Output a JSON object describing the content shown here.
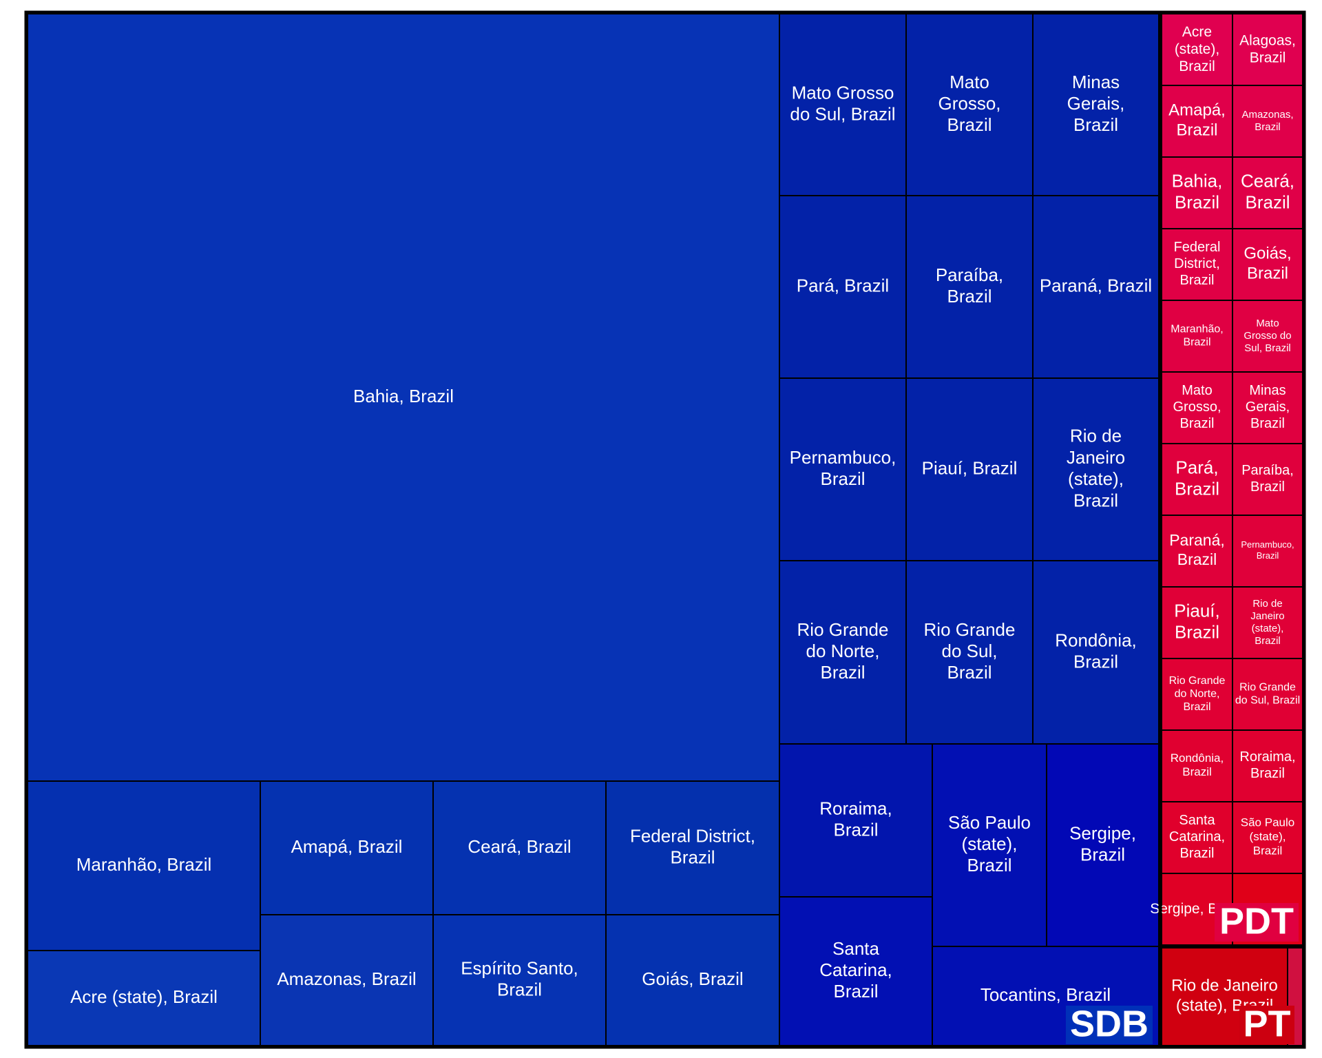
{
  "chart_data": {
    "type": "treemap",
    "groups": [
      {
        "name": "SDB",
        "color": "#0030b8",
        "tiles": [
          {
            "label": "Bahia, Brazil",
            "color": "#0733b5"
          },
          {
            "label": "Maranhão, Brazil",
            "color": "#0530b0"
          },
          {
            "label": "Acre (state), Brazil",
            "color": "#0a38b5"
          },
          {
            "label": "Amapá, Brazil",
            "color": "#0532b0"
          },
          {
            "label": "Ceará, Brazil",
            "color": "#0532b0"
          },
          {
            "label": "Federal District, Brazil",
            "color": "#0430ad"
          },
          {
            "label": "Amazonas, Brazil",
            "color": "#0a35b3"
          },
          {
            "label": "Espírito Santo, Brazil",
            "color": "#0633b3"
          },
          {
            "label": "Goiás, Brazil",
            "color": "#0532b0"
          },
          {
            "label": "Mato Grosso do Sul, Brazil",
            "color": "#0322a8"
          },
          {
            "label": "Mato Grosso, Brazil",
            "color": "#0322a8"
          },
          {
            "label": "Minas Gerais, Brazil",
            "color": "#0322a8"
          },
          {
            "label": "Pará, Brazil",
            "color": "#0322a8"
          },
          {
            "label": "Paraíba, Brazil",
            "color": "#0322a8"
          },
          {
            "label": "Paraná, Brazil",
            "color": "#0322a8"
          },
          {
            "label": "Pernambuco, Brazil",
            "color": "#0322a8"
          },
          {
            "label": "Piauí, Brazil",
            "color": "#0322a8"
          },
          {
            "label": "Rio de Janeiro (state), Brazil",
            "color": "#0322a8"
          },
          {
            "label": "Rio Grande do Norte, Brazil",
            "color": "#0322a8"
          },
          {
            "label": "Rio Grande do Sul, Brazil",
            "color": "#0322a8"
          },
          {
            "label": "Rondônia, Brazil",
            "color": "#0322a8"
          },
          {
            "label": "Roraima, Brazil",
            "color": "#0215ad"
          },
          {
            "label": "São Paulo (state), Brazil",
            "color": "#0210b3"
          },
          {
            "label": "Sergipe, Brazil",
            "color": "#0208b5"
          },
          {
            "label": "Santa Catarina, Brazil",
            "color": "#0210b3"
          },
          {
            "label": "Tocantins, Brazil",
            "color": "#0210b3"
          }
        ]
      },
      {
        "name": "PDT",
        "color": "#e00040",
        "tiles": [
          {
            "label": "Acre (state), Brazil",
            "color": "#e00050"
          },
          {
            "label": "Alagoas, Brazil",
            "color": "#e00050"
          },
          {
            "label": "Amapá, Brazil",
            "color": "#e0004a"
          },
          {
            "label": "Amazonas, Brazil",
            "color": "#e0004a"
          },
          {
            "label": "Bahia, Brazil",
            "color": "#e00048"
          },
          {
            "label": "Ceará, Brazil",
            "color": "#e00048"
          },
          {
            "label": "Federal District, Brazil",
            "color": "#e00045"
          },
          {
            "label": "Goiás, Brazil",
            "color": "#e00045"
          },
          {
            "label": "Maranhão, Brazil",
            "color": "#e00043"
          },
          {
            "label": "Mato Grosso do Sul, Brazil",
            "color": "#e00043"
          },
          {
            "label": "Mato Grosso, Brazil",
            "color": "#e00040"
          },
          {
            "label": "Minas Gerais, Brazil",
            "color": "#e00040"
          },
          {
            "label": "Pará, Brazil",
            "color": "#e0003d"
          },
          {
            "label": "Paraíba, Brazil",
            "color": "#e0003d"
          },
          {
            "label": "Paraná, Brazil",
            "color": "#e0003a"
          },
          {
            "label": "Pernambuco, Brazil",
            "color": "#e0003a"
          },
          {
            "label": "Piauí, Brazil",
            "color": "#e00037"
          },
          {
            "label": "Rio de Janeiro (state), Brazil",
            "color": "#e00037"
          },
          {
            "label": "Rio Grande do Norte, Brazil",
            "color": "#e00034"
          },
          {
            "label": "Rio Grande do Sul, Brazil",
            "color": "#e00034"
          },
          {
            "label": "Rondônia, Brazil",
            "color": "#e00030"
          },
          {
            "label": "Roraima, Brazil",
            "color": "#e00030"
          },
          {
            "label": "Santa Catarina, Brazil",
            "color": "#e0002c"
          },
          {
            "label": "São Paulo (state), Brazil",
            "color": "#e0002c"
          },
          {
            "label": "Sergipe, Brazil",
            "color": "#e00025"
          },
          {
            "label": "",
            "color": "#e00018"
          }
        ]
      },
      {
        "name": "PT",
        "color": "#cc0010",
        "tiles": [
          {
            "label": "Rio de Janeiro (state), Brazil",
            "color": "#d00010"
          },
          {
            "label": "",
            "color": "#d01040"
          }
        ]
      }
    ]
  }
}
